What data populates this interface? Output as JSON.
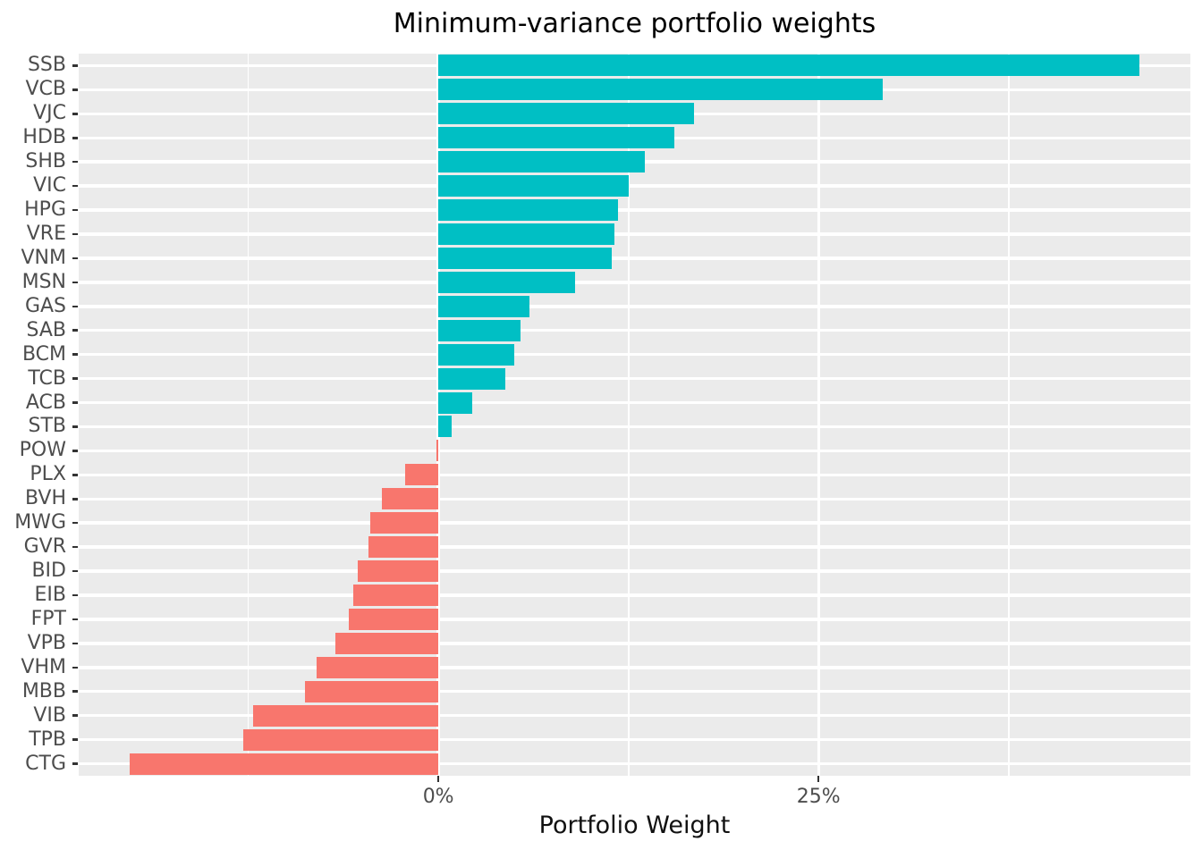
{
  "title": "Minimum-variance portfolio weights",
  "chart_data": {
    "type": "bar",
    "orientation": "horizontal",
    "title": "Minimum-variance portfolio weights",
    "xlabel": "Portfolio Weight",
    "ylabel": "",
    "legend": "none",
    "categories": [
      "SSB",
      "VCB",
      "VJC",
      "HDB",
      "SHB",
      "VIC",
      "HPG",
      "VRE",
      "VNM",
      "MSN",
      "GAS",
      "SAB",
      "BCM",
      "TCB",
      "ACB",
      "STB",
      "POW",
      "PLX",
      "BVH",
      "MWG",
      "GVR",
      "BID",
      "EIB",
      "FPT",
      "VPB",
      "VHM",
      "MBB",
      "VIB",
      "TPB",
      "CTG"
    ],
    "values": [
      46.1,
      29.2,
      16.8,
      15.5,
      13.6,
      12.5,
      11.8,
      11.6,
      11.4,
      9.0,
      6.0,
      5.4,
      5.0,
      4.4,
      2.2,
      0.9,
      -0.15,
      -2.2,
      -3.7,
      -4.5,
      -4.6,
      -5.3,
      -5.6,
      -5.9,
      -6.8,
      -8.0,
      -8.8,
      -12.2,
      -12.8,
      -20.3
    ],
    "value_unit": "%",
    "xlim": [
      -23.65,
      49.45
    ],
    "x_major_ticks": [
      {
        "value": 0,
        "label": "0%"
      },
      {
        "value": 25,
        "label": "25%"
      }
    ],
    "x_minor_gridlines": [
      -12.5,
      12.5,
      37.5
    ],
    "grid": "on",
    "colors": {
      "positive_bar": "#00BFC4",
      "negative_bar": "#F8766D",
      "panel_background": "#EBEBEB",
      "gridline": "#FFFFFF",
      "tick_mark": "#333333",
      "tick_label": "#4D4D4D",
      "title_text": "#000000",
      "axis_title_text": "#111111"
    }
  }
}
